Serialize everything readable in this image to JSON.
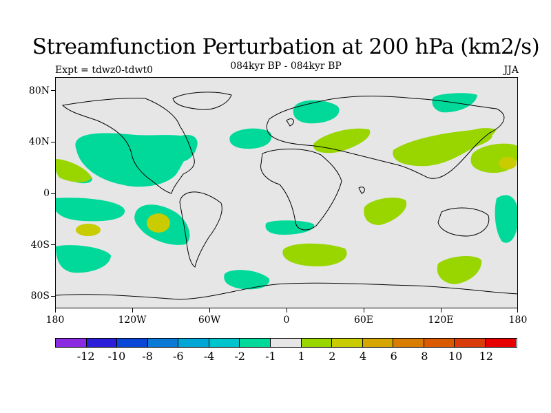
{
  "header": {
    "title": "Streamfunction Perturbation at 200 hPa (km2/s)",
    "subtitle": "084kyr BP - 084kyr BP",
    "experiment": "Expt = tdwz0-tdwt0",
    "season": "JJA"
  },
  "axes": {
    "y_ticks": [
      "80N",
      "40N",
      "0",
      "40S",
      "80S"
    ],
    "x_ticks": [
      "180",
      "120W",
      "60W",
      "0",
      "60E",
      "120E",
      "180"
    ]
  },
  "colorbar": {
    "colors": [
      "#8a2be2",
      "#2c1fd9",
      "#0a47d6",
      "#0a7ad6",
      "#00a6d6",
      "#00c4cc",
      "#00d99a",
      "#e6e6e6",
      "#99d600",
      "#c8cc00",
      "#d6a600",
      "#d97d00",
      "#d95a00",
      "#d93c0a",
      "#e60000"
    ],
    "labels": [
      "-12",
      "-10",
      "-8",
      "-6",
      "-4",
      "-2",
      "-1",
      "1",
      "2",
      "4",
      "6",
      "8",
      "10",
      "12"
    ]
  }
}
